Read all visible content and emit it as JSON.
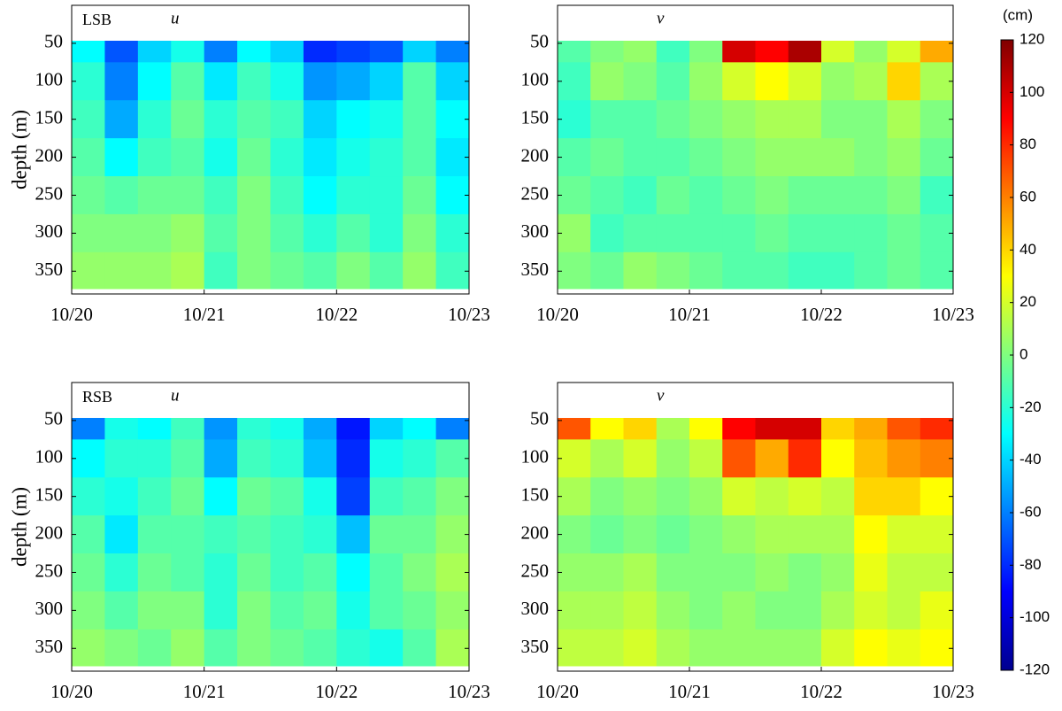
{
  "chart_data": [
    {
      "type": "heatmap",
      "panel_label": "LSB",
      "variable": "u",
      "ylabel": "depth (m)",
      "xlim": [
        0,
        3
      ],
      "xticks": [
        {
          "value": 0,
          "label": "10/20"
        },
        {
          "value": 1,
          "label": "10/21"
        },
        {
          "value": 2,
          "label": "10/22"
        },
        {
          "value": 3,
          "label": "10/23"
        }
      ],
      "ylim": [
        380,
        0
      ],
      "yticks": [
        50,
        100,
        150,
        200,
        250,
        300,
        350
      ],
      "x": [
        0.125,
        0.375,
        0.625,
        0.875,
        1.125,
        1.375,
        1.625,
        1.875,
        2.125,
        2.375,
        2.625,
        2.875
      ],
      "y": [
        50,
        100,
        150,
        200,
        250,
        300,
        350
      ],
      "z": [
        [
          -30,
          -70,
          -40,
          -25,
          -60,
          -30,
          -40,
          -80,
          -75,
          -70,
          -40,
          -60
        ],
        [
          -20,
          -60,
          -30,
          -10,
          -35,
          -15,
          -25,
          -55,
          -50,
          -40,
          -10,
          -40
        ],
        [
          -15,
          -50,
          -20,
          -5,
          -20,
          -10,
          -15,
          -40,
          -30,
          -25,
          -10,
          -30
        ],
        [
          -10,
          -30,
          -15,
          -10,
          -25,
          -5,
          -20,
          -35,
          -25,
          -20,
          -10,
          -35
        ],
        [
          -5,
          -10,
          -5,
          -5,
          -15,
          0,
          -15,
          -30,
          -20,
          -20,
          -5,
          -30
        ],
        [
          0,
          0,
          0,
          5,
          -10,
          0,
          -10,
          -20,
          -10,
          -20,
          0,
          -20
        ],
        [
          5,
          5,
          5,
          10,
          -15,
          0,
          -5,
          -10,
          0,
          -10,
          5,
          -15
        ]
      ]
    },
    {
      "type": "heatmap",
      "variable": "v",
      "xlim": [
        0,
        3
      ],
      "xticks": [
        {
          "value": 0,
          "label": "10/20"
        },
        {
          "value": 1,
          "label": "10/21"
        },
        {
          "value": 2,
          "label": "10/22"
        },
        {
          "value": 3,
          "label": "10/23"
        }
      ],
      "ylim": [
        380,
        0
      ],
      "yticks": [
        50,
        100,
        150,
        200,
        250,
        300,
        350
      ],
      "x": [
        0.125,
        0.375,
        0.625,
        0.875,
        1.125,
        1.375,
        1.625,
        1.875,
        2.125,
        2.375,
        2.625,
        2.875
      ],
      "y": [
        50,
        100,
        150,
        200,
        250,
        300,
        350
      ],
      "z": [
        [
          -10,
          0,
          5,
          -15,
          0,
          100,
          90,
          110,
          20,
          5,
          20,
          50
        ],
        [
          -15,
          5,
          0,
          -10,
          5,
          20,
          30,
          20,
          5,
          10,
          40,
          10
        ],
        [
          -20,
          -10,
          -10,
          -5,
          0,
          5,
          10,
          10,
          0,
          0,
          10,
          0
        ],
        [
          -10,
          -5,
          -10,
          -10,
          -5,
          0,
          5,
          5,
          5,
          0,
          5,
          -5
        ],
        [
          -5,
          -10,
          -15,
          -5,
          -10,
          -5,
          0,
          -5,
          -5,
          -5,
          0,
          -15
        ],
        [
          5,
          -15,
          -10,
          -10,
          -10,
          -10,
          -5,
          -10,
          -10,
          -10,
          -5,
          -10
        ],
        [
          0,
          -5,
          5,
          0,
          -5,
          -10,
          -10,
          -15,
          -15,
          -10,
          -5,
          -10
        ]
      ]
    },
    {
      "type": "heatmap",
      "panel_label": "RSB",
      "variable": "u",
      "ylabel": "depth (m)",
      "xlim": [
        0,
        3
      ],
      "xticks": [
        {
          "value": 0,
          "label": "10/20"
        },
        {
          "value": 1,
          "label": "10/21"
        },
        {
          "value": 2,
          "label": "10/22"
        },
        {
          "value": 3,
          "label": "10/23"
        }
      ],
      "ylim": [
        380,
        0
      ],
      "yticks": [
        50,
        100,
        150,
        200,
        250,
        300,
        350
      ],
      "x": [
        0.125,
        0.375,
        0.625,
        0.875,
        1.125,
        1.375,
        1.625,
        1.875,
        2.125,
        2.375,
        2.625,
        2.875
      ],
      "y": [
        50,
        100,
        150,
        200,
        250,
        300,
        350
      ],
      "z": [
        [
          -60,
          -25,
          -30,
          -15,
          -55,
          -20,
          -25,
          -50,
          -85,
          -40,
          -30,
          -60
        ],
        [
          -30,
          -20,
          -20,
          -10,
          -50,
          -15,
          -20,
          -45,
          -80,
          -25,
          -20,
          -10
        ],
        [
          -20,
          -25,
          -15,
          -5,
          -30,
          -5,
          -10,
          -25,
          -75,
          -15,
          -10,
          0
        ],
        [
          -10,
          -35,
          -10,
          -10,
          -15,
          -10,
          -15,
          -20,
          -45,
          -5,
          -5,
          5
        ],
        [
          -5,
          -20,
          -5,
          -10,
          -20,
          -5,
          -15,
          -10,
          -30,
          -10,
          0,
          10
        ],
        [
          0,
          -10,
          0,
          0,
          -20,
          0,
          -10,
          -5,
          -25,
          -10,
          -5,
          5
        ],
        [
          5,
          0,
          -5,
          5,
          -10,
          0,
          -5,
          -10,
          -20,
          -25,
          -10,
          10
        ]
      ]
    },
    {
      "type": "heatmap",
      "variable": "v",
      "xlim": [
        0,
        3
      ],
      "xticks": [
        {
          "value": 0,
          "label": "10/20"
        },
        {
          "value": 1,
          "label": "10/21"
        },
        {
          "value": 2,
          "label": "10/22"
        },
        {
          "value": 3,
          "label": "10/23"
        }
      ],
      "ylim": [
        380,
        0
      ],
      "yticks": [
        50,
        100,
        150,
        200,
        250,
        300,
        350
      ],
      "x": [
        0.125,
        0.375,
        0.625,
        0.875,
        1.125,
        1.375,
        1.625,
        1.875,
        2.125,
        2.375,
        2.625,
        2.875
      ],
      "y": [
        50,
        100,
        150,
        200,
        250,
        300,
        350
      ],
      "z": [
        [
          70,
          30,
          40,
          10,
          30,
          90,
          100,
          100,
          40,
          50,
          70,
          80
        ],
        [
          20,
          10,
          20,
          5,
          15,
          70,
          50,
          80,
          30,
          45,
          55,
          60
        ],
        [
          10,
          0,
          5,
          0,
          5,
          20,
          15,
          20,
          15,
          40,
          40,
          30
        ],
        [
          0,
          -5,
          0,
          -5,
          0,
          5,
          10,
          10,
          10,
          30,
          20,
          20
        ],
        [
          5,
          5,
          10,
          0,
          0,
          0,
          5,
          0,
          5,
          25,
          15,
          15
        ],
        [
          10,
          10,
          15,
          5,
          0,
          5,
          0,
          0,
          10,
          20,
          15,
          25
        ],
        [
          15,
          15,
          20,
          10,
          5,
          5,
          5,
          5,
          20,
          30,
          25,
          30
        ]
      ]
    }
  ],
  "colorbar": {
    "label": "(cm)",
    "zlim": [
      -120,
      120
    ],
    "zticks": [
      -120,
      -100,
      -80,
      -60,
      -40,
      -20,
      0,
      20,
      40,
      60,
      80,
      100,
      120
    ]
  }
}
